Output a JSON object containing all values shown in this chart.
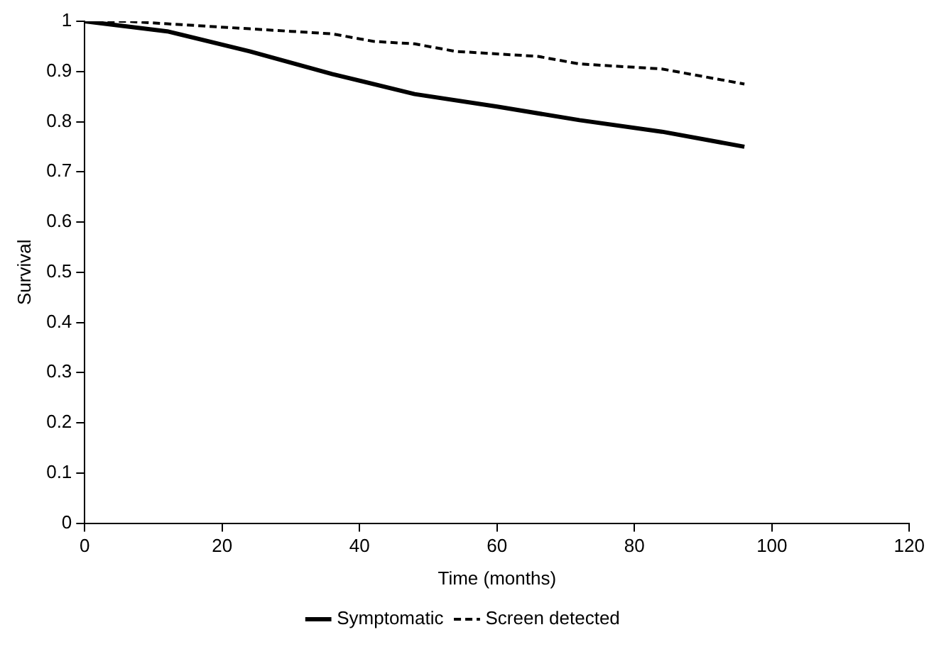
{
  "chart_data": {
    "type": "line",
    "xlabel": "Time (months)",
    "ylabel": "Survival",
    "xlim": [
      0,
      120
    ],
    "xticks": [
      0,
      20,
      40,
      60,
      80,
      100,
      120
    ],
    "ylim": [
      0,
      1
    ],
    "yticks": [
      0,
      0.1,
      0.2,
      0.3,
      0.4,
      0.5,
      0.6,
      0.7,
      0.8,
      0.9,
      1
    ],
    "grid": false,
    "legend": "bottom",
    "marker": "none",
    "series": [
      {
        "name": "Symptomatic",
        "color": "#000000",
        "line_style": "solid",
        "x": [
          0,
          12,
          24,
          36,
          48,
          60,
          72,
          84,
          96
        ],
        "values": [
          1,
          0.98,
          0.94,
          0.895,
          0.855,
          0.83,
          0.803,
          0.78,
          0.75
        ]
      },
      {
        "name": "Screen detected",
        "color": "#000000",
        "line_style": "dashed",
        "x": [
          0,
          6,
          12,
          18,
          24,
          30,
          36,
          42,
          48,
          54,
          60,
          66,
          72,
          78,
          84,
          90,
          96
        ],
        "values": [
          1,
          1,
          0.995,
          0.99,
          0.985,
          0.98,
          0.975,
          0.96,
          0.955,
          0.94,
          0.935,
          0.93,
          0.915,
          0.91,
          0.905,
          0.89,
          0.875
        ]
      }
    ]
  }
}
